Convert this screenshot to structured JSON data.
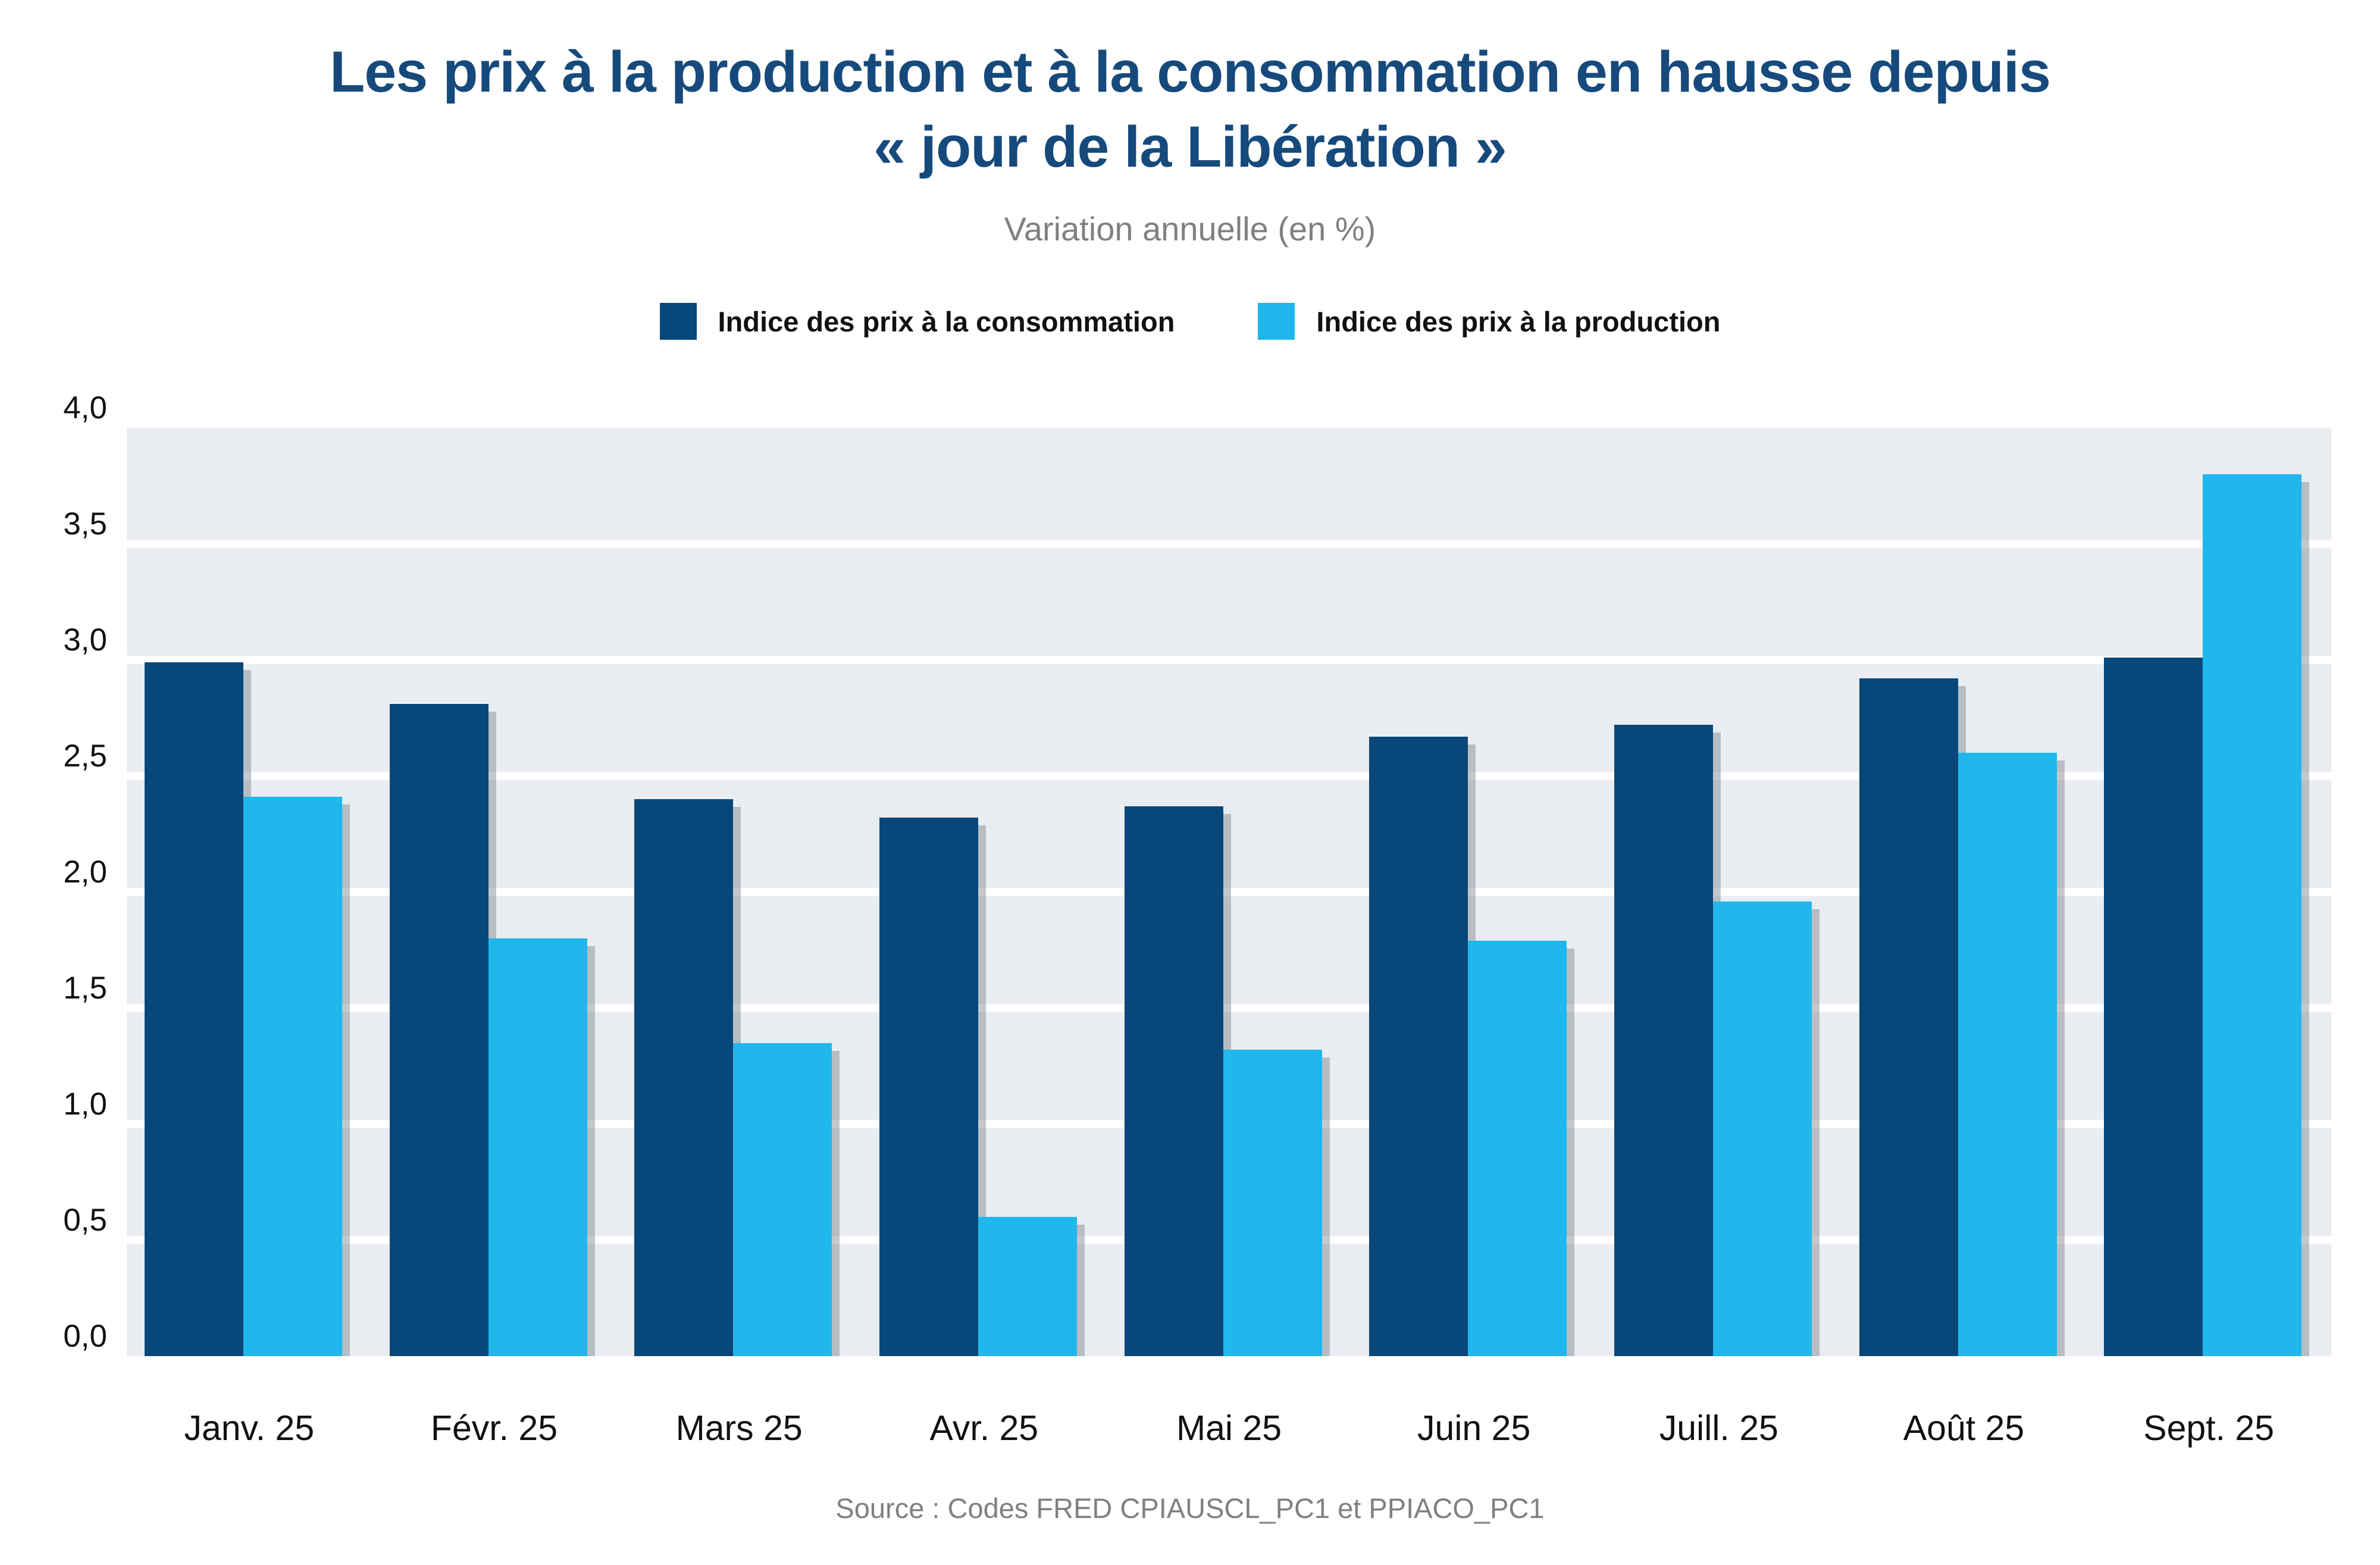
{
  "title": {
    "line1": "Les prix à la production et à la consommation en hausse depuis",
    "line2": "« jour de la Libération »"
  },
  "subtitle": "Variation annuelle (en %)",
  "legend": [
    {
      "label": "Indice des prix à la consommation",
      "color": "#07477a"
    },
    {
      "label": "Indice des prix à la production",
      "color": "#1fb7ec"
    }
  ],
  "source": "Source : Codes FRED CPIAUSCL_PC1 et PPIACO_PC1",
  "chart_data": {
    "type": "bar",
    "title": "Les prix à la production et à la consommation en hausse depuis « jour de la Libération »",
    "subtitle": "Variation annuelle (en %)",
    "categories": [
      "Janv. 25",
      "Févr. 25",
      "Mars 25",
      "Avr. 25",
      "Mai 25",
      "Juin 25",
      "Juill. 25",
      "Août 25",
      "Sept. 25"
    ],
    "series": [
      {
        "name": "Indice des prix à la consommation",
        "color": "#07477a",
        "values": [
          2.99,
          2.81,
          2.4,
          2.32,
          2.37,
          2.67,
          2.72,
          2.92,
          3.01
        ]
      },
      {
        "name": "Indice des prix à la production",
        "color": "#1fb7ec",
        "values": [
          2.41,
          1.8,
          1.35,
          0.6,
          1.32,
          1.79,
          1.96,
          2.6,
          3.8
        ]
      }
    ],
    "xlabel": "",
    "ylabel": "Variation annuelle (en %)",
    "ylim": [
      0,
      4
    ],
    "ytick_step": 0.5,
    "ytick_labels": [
      "0,0",
      "0,5",
      "1,0",
      "1,5",
      "2,0",
      "2,5",
      "3,0",
      "3,5",
      "4,0"
    ],
    "grid": true,
    "gridline_color": "#ffffff",
    "plot_background": "#e9edf1",
    "legend_position": "top"
  }
}
